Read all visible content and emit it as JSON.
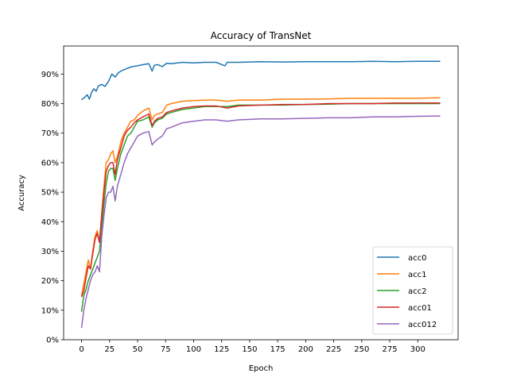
{
  "chart_data": {
    "type": "line",
    "title": "Accuracy of TransNet",
    "xlabel": "Epoch",
    "ylabel": "Accuracy",
    "xlim": [
      -16,
      336
    ],
    "ylim": [
      0,
      0.995
    ],
    "xticks": [
      0,
      25,
      50,
      75,
      100,
      125,
      150,
      175,
      200,
      225,
      250,
      275,
      300
    ],
    "xtick_labels": [
      "0",
      "25",
      "50",
      "75",
      "100",
      "125",
      "150",
      "175",
      "200",
      "225",
      "250",
      "275",
      "300"
    ],
    "yticks": [
      0,
      0.1,
      0.2,
      0.3,
      0.4,
      0.5,
      0.6,
      0.7,
      0.8,
      0.9
    ],
    "ytick_labels": [
      "0%",
      "10%",
      "20%",
      "30%",
      "40%",
      "50%",
      "60%",
      "70%",
      "80%",
      "90%"
    ],
    "grid": false,
    "legend_position": "lower-right",
    "series": [
      {
        "name": "acc0",
        "color": "#1f77b4",
        "x": [
          0,
          3,
          5,
          7,
          9,
          11,
          13,
          15,
          18,
          21,
          24,
          27,
          30,
          33,
          36,
          40,
          45,
          50,
          55,
          60,
          63,
          65,
          68,
          72,
          76,
          80,
          90,
          100,
          110,
          120,
          128,
          130,
          140,
          160,
          180,
          200,
          220,
          240,
          260,
          280,
          300,
          320
        ],
        "y": [
          0.813,
          0.822,
          0.83,
          0.815,
          0.838,
          0.85,
          0.842,
          0.86,
          0.865,
          0.858,
          0.875,
          0.9,
          0.89,
          0.905,
          0.912,
          0.918,
          0.925,
          0.928,
          0.932,
          0.935,
          0.91,
          0.93,
          0.932,
          0.925,
          0.937,
          0.935,
          0.94,
          0.938,
          0.94,
          0.94,
          0.928,
          0.94,
          0.94,
          0.942,
          0.941,
          0.942,
          0.942,
          0.942,
          0.943,
          0.942,
          0.943,
          0.943
        ]
      },
      {
        "name": "acc1",
        "color": "#ff7f0e",
        "x": [
          0,
          2,
          4,
          6,
          8,
          10,
          12,
          14,
          16,
          18,
          20,
          22,
          24,
          26,
          28,
          30,
          32,
          35,
          38,
          41,
          44,
          47,
          50,
          55,
          60,
          63,
          65,
          68,
          72,
          76,
          80,
          90,
          100,
          110,
          120,
          130,
          140,
          160,
          180,
          200,
          220,
          240,
          260,
          280,
          300,
          320
        ],
        "y": [
          0.15,
          0.19,
          0.23,
          0.27,
          0.24,
          0.3,
          0.35,
          0.37,
          0.33,
          0.43,
          0.52,
          0.6,
          0.61,
          0.63,
          0.64,
          0.6,
          0.62,
          0.67,
          0.7,
          0.72,
          0.74,
          0.745,
          0.76,
          0.775,
          0.785,
          0.745,
          0.76,
          0.765,
          0.77,
          0.795,
          0.8,
          0.808,
          0.81,
          0.812,
          0.812,
          0.808,
          0.812,
          0.812,
          0.815,
          0.815,
          0.816,
          0.818,
          0.818,
          0.818,
          0.818,
          0.82
        ]
      },
      {
        "name": "acc2",
        "color": "#2ca02c",
        "x": [
          0,
          2,
          4,
          6,
          8,
          10,
          12,
          14,
          16,
          18,
          20,
          22,
          24,
          26,
          28,
          30,
          32,
          35,
          38,
          41,
          44,
          47,
          50,
          55,
          60,
          63,
          65,
          68,
          72,
          76,
          80,
          90,
          100,
          110,
          120,
          130,
          140,
          160,
          180,
          200,
          220,
          240,
          260,
          280,
          300,
          320
        ],
        "y": [
          0.095,
          0.15,
          0.17,
          0.2,
          0.22,
          0.24,
          0.26,
          0.28,
          0.3,
          0.38,
          0.46,
          0.53,
          0.57,
          0.58,
          0.58,
          0.54,
          0.58,
          0.63,
          0.66,
          0.69,
          0.7,
          0.72,
          0.74,
          0.745,
          0.755,
          0.72,
          0.735,
          0.745,
          0.75,
          0.765,
          0.77,
          0.78,
          0.785,
          0.79,
          0.79,
          0.79,
          0.795,
          0.795,
          0.795,
          0.797,
          0.798,
          0.8,
          0.8,
          0.8,
          0.8,
          0.8
        ]
      },
      {
        "name": "acc01",
        "color": "#d62728",
        "x": [
          0,
          2,
          4,
          6,
          8,
          10,
          12,
          14,
          16,
          18,
          20,
          22,
          24,
          26,
          28,
          30,
          32,
          35,
          38,
          41,
          44,
          47,
          50,
          55,
          60,
          63,
          65,
          68,
          72,
          76,
          80,
          90,
          100,
          110,
          120,
          130,
          140,
          160,
          180,
          200,
          220,
          240,
          260,
          280,
          300,
          320
        ],
        "y": [
          0.145,
          0.165,
          0.21,
          0.25,
          0.24,
          0.29,
          0.34,
          0.36,
          0.33,
          0.42,
          0.5,
          0.57,
          0.59,
          0.6,
          0.6,
          0.56,
          0.61,
          0.65,
          0.69,
          0.71,
          0.72,
          0.735,
          0.745,
          0.755,
          0.765,
          0.725,
          0.74,
          0.75,
          0.755,
          0.77,
          0.775,
          0.785,
          0.79,
          0.792,
          0.792,
          0.785,
          0.792,
          0.795,
          0.797,
          0.797,
          0.8,
          0.8,
          0.8,
          0.802,
          0.802,
          0.802
        ]
      },
      {
        "name": "acc012",
        "color": "#9467bd",
        "x": [
          0,
          2,
          4,
          6,
          8,
          10,
          12,
          14,
          16,
          18,
          20,
          22,
          24,
          26,
          28,
          30,
          32,
          35,
          38,
          41,
          44,
          47,
          50,
          55,
          60,
          63,
          65,
          68,
          72,
          76,
          80,
          90,
          100,
          110,
          120,
          130,
          140,
          160,
          180,
          200,
          220,
          240,
          260,
          280,
          300,
          320
        ],
        "y": [
          0.04,
          0.1,
          0.14,
          0.17,
          0.2,
          0.22,
          0.23,
          0.25,
          0.23,
          0.35,
          0.42,
          0.48,
          0.5,
          0.5,
          0.52,
          0.47,
          0.52,
          0.56,
          0.6,
          0.63,
          0.65,
          0.67,
          0.69,
          0.7,
          0.705,
          0.66,
          0.67,
          0.68,
          0.69,
          0.715,
          0.72,
          0.735,
          0.74,
          0.745,
          0.745,
          0.74,
          0.745,
          0.748,
          0.748,
          0.75,
          0.752,
          0.752,
          0.755,
          0.755,
          0.757,
          0.758
        ]
      }
    ]
  }
}
